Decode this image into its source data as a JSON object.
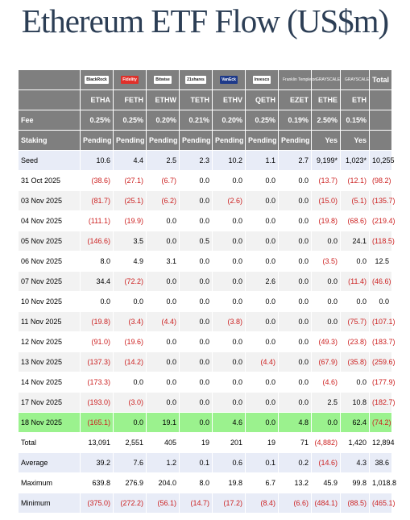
{
  "title": "Ethereum ETF Flow (US$m)",
  "header": {
    "logos": [
      "BlackRock",
      "Fidelity",
      "Bitwise",
      "21shares",
      "VanEck",
      "Invesco",
      "Franklin Templeton",
      "GRAYSCALE",
      "GRAYSCALE"
    ],
    "total_label": "Total",
    "tickers": [
      "ETHA",
      "FETH",
      "ETHW",
      "TETH",
      "ETHV",
      "QETH",
      "EZET",
      "ETHE",
      "ETH"
    ],
    "fee_label": "Fee",
    "fees": [
      "0.25%",
      "0.25%",
      "0.20%",
      "0.21%",
      "0.20%",
      "0.25%",
      "0.19%",
      "2.50%",
      "0.15%"
    ],
    "staking_label": "Staking",
    "staking": [
      "Pending",
      "Pending",
      "Pending",
      "Pending",
      "Pending",
      "Pending",
      "Pending",
      "Yes",
      "Yes"
    ]
  },
  "rows": [
    {
      "label": "Seed",
      "values": [
        "10.6",
        "4.4",
        "2.5",
        "2.3",
        "10.2",
        "1.1",
        "2.7",
        "9,199*",
        "1,023*",
        "10,255"
      ]
    },
    {
      "label": "31 Oct 2025",
      "values": [
        "(38.6)",
        "(27.1)",
        "(6.7)",
        "0.0",
        "0.0",
        "0.0",
        "0.0",
        "(13.7)",
        "(12.1)",
        "(98.2)"
      ]
    },
    {
      "label": "03 Nov 2025",
      "values": [
        "(81.7)",
        "(25.1)",
        "(6.2)",
        "0.0",
        "(2.6)",
        "0.0",
        "0.0",
        "(15.0)",
        "(5.1)",
        "(135.7)"
      ]
    },
    {
      "label": "04 Nov 2025",
      "values": [
        "(111.1)",
        "(19.9)",
        "0.0",
        "0.0",
        "0.0",
        "0.0",
        "0.0",
        "(19.8)",
        "(68.6)",
        "(219.4)"
      ]
    },
    {
      "label": "05 Nov 2025",
      "values": [
        "(146.6)",
        "3.5",
        "0.0",
        "0.5",
        "0.0",
        "0.0",
        "0.0",
        "0.0",
        "24.1",
        "(118.5)"
      ]
    },
    {
      "label": "06 Nov 2025",
      "values": [
        "8.0",
        "4.9",
        "3.1",
        "0.0",
        "0.0",
        "0.0",
        "0.0",
        "(3.5)",
        "0.0",
        "12.5"
      ]
    },
    {
      "label": "07 Nov 2025",
      "values": [
        "34.4",
        "(72.2)",
        "0.0",
        "0.0",
        "0.0",
        "2.6",
        "0.0",
        "0.0",
        "(11.4)",
        "(46.6)"
      ]
    },
    {
      "label": "10 Nov 2025",
      "values": [
        "0.0",
        "0.0",
        "0.0",
        "0.0",
        "0.0",
        "0.0",
        "0.0",
        "0.0",
        "0.0",
        "0.0"
      ]
    },
    {
      "label": "11 Nov 2025",
      "values": [
        "(19.8)",
        "(3.4)",
        "(4.4)",
        "0.0",
        "(3.8)",
        "0.0",
        "0.0",
        "0.0",
        "(75.7)",
        "(107.1)"
      ]
    },
    {
      "label": "12 Nov 2025",
      "values": [
        "(91.0)",
        "(19.6)",
        "0.0",
        "0.0",
        "0.0",
        "0.0",
        "0.0",
        "(49.3)",
        "(23.8)",
        "(183.7)"
      ]
    },
    {
      "label": "13 Nov 2025",
      "values": [
        "(137.3)",
        "(14.2)",
        "0.0",
        "0.0",
        "0.0",
        "(4.4)",
        "0.0",
        "(67.9)",
        "(35.8)",
        "(259.6)"
      ]
    },
    {
      "label": "14 Nov 2025",
      "values": [
        "(173.3)",
        "0.0",
        "0.0",
        "0.0",
        "0.0",
        "0.0",
        "0.0",
        "(4.6)",
        "0.0",
        "(177.9)"
      ]
    },
    {
      "label": "17 Nov 2025",
      "values": [
        "(193.0)",
        "(3.0)",
        "0.0",
        "0.0",
        "0.0",
        "0.0",
        "0.0",
        "2.5",
        "10.8",
        "(182.7)"
      ]
    },
    {
      "label": "18 Nov 2025",
      "values": [
        "(165.1)",
        "0.0",
        "19.1",
        "0.0",
        "4.6",
        "0.0",
        "4.8",
        "0.0",
        "62.4",
        "(74.2)"
      ],
      "highlight": true
    }
  ],
  "summary": [
    {
      "label": "Total",
      "values": [
        "13,091",
        "2,551",
        "405",
        "19",
        "201",
        "19",
        "71",
        "(4,882)",
        "1,420",
        "12,894"
      ]
    },
    {
      "label": "Average",
      "values": [
        "39.2",
        "7.6",
        "1.2",
        "0.1",
        "0.6",
        "0.1",
        "0.2",
        "(14.6)",
        "4.3",
        "38.6"
      ]
    },
    {
      "label": "Maximum",
      "values": [
        "639.8",
        "276.9",
        "204.0",
        "8.0",
        "19.8",
        "6.7",
        "13.2",
        "45.9",
        "99.8",
        "1,018.8"
      ]
    },
    {
      "label": "Minimum",
      "values": [
        "(375.0)",
        "(272.2)",
        "(56.1)",
        "(14.7)",
        "(17.2)",
        "(8.4)",
        "(6.6)",
        "(484.1)",
        "(88.5)",
        "(465.1)"
      ]
    }
  ],
  "colors": {
    "header_bg": "#7f7f7f",
    "row_blue": "#e8ecf7",
    "row_gray": "#f2f2f2",
    "highlight_green": "#9bf28e",
    "negative": "#cc1f1f",
    "title": "#2c3e55"
  }
}
